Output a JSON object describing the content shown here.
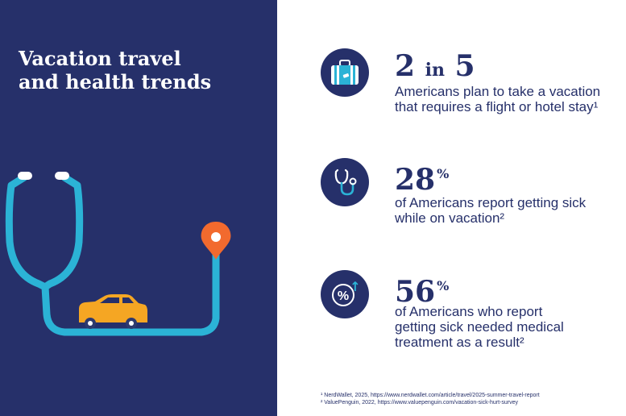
{
  "title": {
    "line1": "Vacation travel",
    "line2": "and health trends"
  },
  "stats": [
    {
      "icon": "suitcase-icon",
      "number": "2",
      "connector": "in",
      "number2": "5",
      "desc_lines": [
        "Americans plan to take a vacation",
        "that requires a flight or hotel stay¹"
      ]
    },
    {
      "icon": "stethoscope-icon",
      "number": "28",
      "unit": "%",
      "desc_lines": [
        "of Americans report getting sick",
        "while on vacation²"
      ]
    },
    {
      "icon": "percent-up-icon",
      "number": "56",
      "unit": "%",
      "desc_lines": [
        "of Americans who report",
        "getting sick needed medical",
        "treatment as a result²"
      ]
    }
  ],
  "footnotes": [
    "¹ NerdWallet, 2025, https://www.nerdwallet.com/article/travel/2025-summer-travel-report",
    "² ValuePenguin, 2022, https://www.valuepenguin.com/vacation-sick-hurt-survey"
  ],
  "colors": {
    "navy": "#26306a",
    "teal": "#2bb3d6",
    "orange": "#f26a2e",
    "car": "#f5a623",
    "white": "#ffffff"
  },
  "icon_glyphs": {
    "percent": "%",
    "arrow": "↑"
  }
}
